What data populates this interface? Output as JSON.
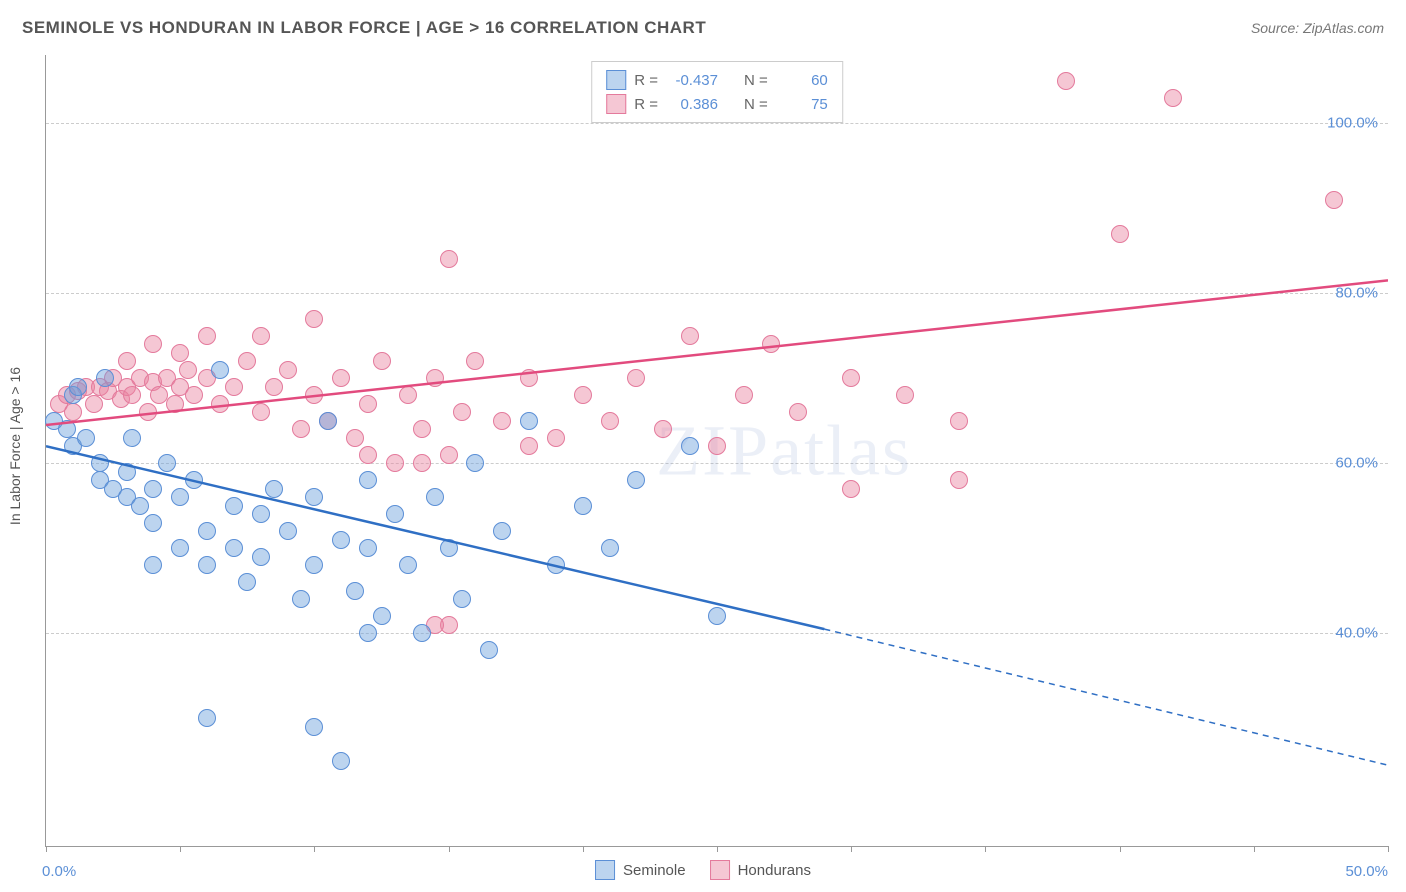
{
  "title": "SEMINOLE VS HONDURAN IN LABOR FORCE | AGE > 16 CORRELATION CHART",
  "source": "Source: ZipAtlas.com",
  "watermark": "ZIPatlas",
  "ylabel": "In Labor Force | Age > 16",
  "chart": {
    "type": "scatter",
    "xlim": [
      0,
      50
    ],
    "ylim": [
      15,
      108
    ],
    "background_color": "#ffffff",
    "grid_color": "#cccccc",
    "axis_color": "#999999",
    "xtick_label_start": "0.0%",
    "xtick_label_end": "50.0%",
    "xticks": [
      0,
      5,
      10,
      15,
      20,
      25,
      30,
      35,
      40,
      45,
      50
    ],
    "yticks": [
      40,
      60,
      80,
      100
    ],
    "ytick_labels": [
      "40.0%",
      "60.0%",
      "80.0%",
      "100.0%"
    ],
    "point_radius": 9,
    "point_opacity": 0.55,
    "label_fontsize": 15,
    "label_color": "#5b8fd6"
  },
  "series": {
    "seminole": {
      "label": "Seminole",
      "color_fill": "rgba(107, 160, 220, 0.45)",
      "color_stroke": "#5b8fd6",
      "R": "-0.437",
      "N": "60",
      "trend": {
        "x1": 0,
        "y1": 62,
        "x2_solid": 29,
        "y2_solid": 40.5,
        "x2": 50,
        "y2": 24.5,
        "stroke": "#2f6fc4",
        "stroke_width": 2.5
      },
      "points": [
        [
          0.3,
          65
        ],
        [
          0.8,
          64
        ],
        [
          1,
          68
        ],
        [
          1,
          62
        ],
        [
          1.2,
          69
        ],
        [
          1.5,
          63
        ],
        [
          2,
          60
        ],
        [
          2,
          58
        ],
        [
          2.2,
          70
        ],
        [
          2.5,
          57
        ],
        [
          3,
          59
        ],
        [
          3,
          56
        ],
        [
          3.2,
          63
        ],
        [
          3.5,
          55
        ],
        [
          4,
          57
        ],
        [
          4,
          53
        ],
        [
          4.5,
          60
        ],
        [
          5,
          56
        ],
        [
          5,
          50
        ],
        [
          5.5,
          58
        ],
        [
          6,
          52
        ],
        [
          6,
          48
        ],
        [
          6.5,
          71
        ],
        [
          7,
          55
        ],
        [
          7,
          50
        ],
        [
          7.5,
          46
        ],
        [
          8,
          54
        ],
        [
          8,
          49
        ],
        [
          8.5,
          57
        ],
        [
          9,
          52
        ],
        [
          9.5,
          44
        ],
        [
          10,
          56
        ],
        [
          10,
          48
        ],
        [
          10.5,
          65
        ],
        [
          11,
          51
        ],
        [
          11.5,
          45
        ],
        [
          12,
          58
        ],
        [
          12,
          50
        ],
        [
          12.5,
          42
        ],
        [
          13,
          54
        ],
        [
          13.5,
          48
        ],
        [
          14,
          40
        ],
        [
          14.5,
          56
        ],
        [
          15,
          50
        ],
        [
          15.5,
          44
        ],
        [
          16,
          60
        ],
        [
          16.5,
          38
        ],
        [
          17,
          52
        ],
        [
          18,
          65
        ],
        [
          19,
          48
        ],
        [
          20,
          55
        ],
        [
          21,
          50
        ],
        [
          22,
          58
        ],
        [
          24,
          62
        ],
        [
          25,
          42
        ],
        [
          6,
          30
        ],
        [
          10,
          29
        ],
        [
          11,
          25
        ],
        [
          12,
          40
        ],
        [
          4,
          48
        ]
      ]
    },
    "hondurans": {
      "label": "Hondurans",
      "color_fill": "rgba(232, 130, 160, 0.45)",
      "color_stroke": "#e47a9c",
      "R": "0.386",
      "N": "75",
      "trend": {
        "x1": 0,
        "y1": 64.5,
        "x2": 50,
        "y2": 81.5,
        "stroke": "#e24b7e",
        "stroke_width": 2.5
      },
      "points": [
        [
          0.5,
          67
        ],
        [
          0.8,
          68
        ],
        [
          1,
          66
        ],
        [
          1.2,
          68.5
        ],
        [
          1.5,
          69
        ],
        [
          1.8,
          67
        ],
        [
          2,
          69
        ],
        [
          2.3,
          68.5
        ],
        [
          2.5,
          70
        ],
        [
          2.8,
          67.5
        ],
        [
          3,
          69
        ],
        [
          3.2,
          68
        ],
        [
          3.5,
          70
        ],
        [
          3.8,
          66
        ],
        [
          4,
          69.5
        ],
        [
          4.2,
          68
        ],
        [
          4.5,
          70
        ],
        [
          4.8,
          67
        ],
        [
          5,
          69
        ],
        [
          5.3,
          71
        ],
        [
          5.5,
          68
        ],
        [
          6,
          70
        ],
        [
          6,
          75
        ],
        [
          6.5,
          67
        ],
        [
          7,
          69
        ],
        [
          7.5,
          72
        ],
        [
          8,
          66
        ],
        [
          8,
          75
        ],
        [
          8.5,
          69
        ],
        [
          9,
          71
        ],
        [
          9.5,
          64
        ],
        [
          10,
          68
        ],
        [
          10,
          77
        ],
        [
          10.5,
          65
        ],
        [
          11,
          70
        ],
        [
          11.5,
          63
        ],
        [
          12,
          67
        ],
        [
          12.5,
          72
        ],
        [
          13,
          60
        ],
        [
          13.5,
          68
        ],
        [
          14,
          64
        ],
        [
          14.5,
          70
        ],
        [
          15,
          84
        ],
        [
          15,
          61
        ],
        [
          15.5,
          66
        ],
        [
          16,
          72
        ],
        [
          17,
          65
        ],
        [
          18,
          70
        ],
        [
          19,
          63
        ],
        [
          20,
          68
        ],
        [
          21,
          65
        ],
        [
          22,
          70
        ],
        [
          23,
          64
        ],
        [
          24,
          75
        ],
        [
          25,
          62
        ],
        [
          26,
          68
        ],
        [
          27,
          74
        ],
        [
          28,
          66
        ],
        [
          30,
          70
        ],
        [
          32,
          68
        ],
        [
          34,
          65
        ],
        [
          30,
          57
        ],
        [
          12,
          61
        ],
        [
          14,
          60
        ],
        [
          15,
          41
        ],
        [
          34,
          58
        ],
        [
          38,
          105
        ],
        [
          40,
          87
        ],
        [
          42,
          103
        ],
        [
          48,
          91
        ],
        [
          5,
          73
        ],
        [
          4,
          74
        ],
        [
          3,
          72
        ],
        [
          14.5,
          41
        ],
        [
          18,
          62
        ]
      ]
    }
  },
  "legend_top": {
    "r_label": "R =",
    "n_label": "N ="
  },
  "legend_bottom_position": "bottom-center"
}
